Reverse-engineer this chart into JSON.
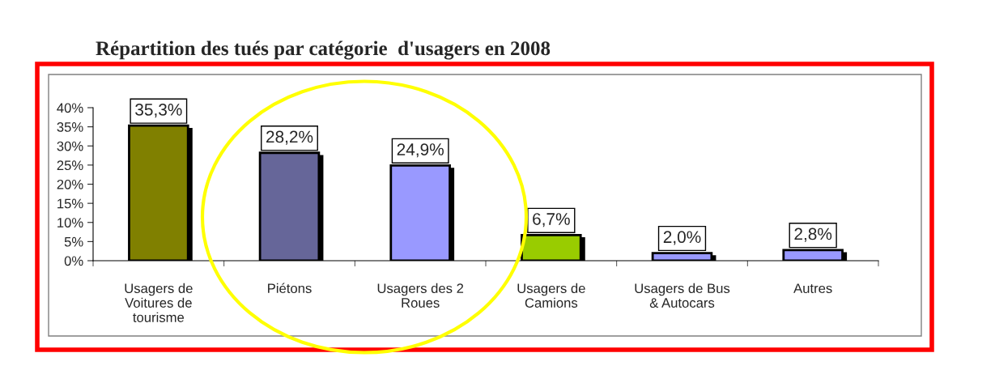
{
  "chart_data": {
    "type": "bar",
    "title": "Répartition des tués par catégorie  d'usagers en 2008",
    "categories": [
      "Usagers de\nVoitures de\ntourisme",
      "Piétons",
      "Usagers des 2\nRoues",
      "Usagers de\nCamions",
      "Usagers de Bus\n& Autocars",
      "Autres"
    ],
    "values": [
      35.3,
      28.2,
      24.9,
      6.7,
      2.0,
      2.8
    ],
    "value_labels": [
      "35,3%",
      "28,2%",
      "24,9%",
      "6,7%",
      "2,0%",
      "2,8%"
    ],
    "colors": [
      "#808000",
      "#666699",
      "#9999ff",
      "#99cc00",
      "#9999ff",
      "#9999ff"
    ],
    "ylim": [
      0,
      40
    ],
    "yticks": [
      {
        "value": 0,
        "label": "0%"
      },
      {
        "value": 5,
        "label": "5%"
      },
      {
        "value": 10,
        "label": "10%"
      },
      {
        "value": 15,
        "label": "15%"
      },
      {
        "value": 20,
        "label": "20%"
      },
      {
        "value": 25,
        "label": "25%"
      },
      {
        "value": 30,
        "label": "30%"
      },
      {
        "value": 35,
        "label": "35%"
      },
      {
        "value": 40,
        "label": "40%"
      }
    ],
    "grid": false,
    "legend": false
  }
}
